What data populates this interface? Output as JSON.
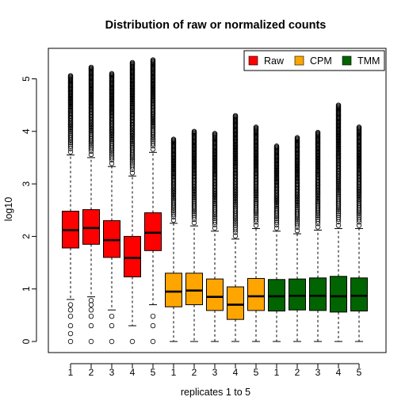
{
  "chart_data": {
    "type": "boxplot",
    "title": "Distribution of raw or normalized counts",
    "xlabel": "replicates 1 to 5",
    "ylabel": "log10",
    "categories": [
      "1",
      "2",
      "3",
      "4",
      "5",
      "1",
      "2",
      "3",
      "4",
      "5",
      "1",
      "2",
      "3",
      "4",
      "5"
    ],
    "ylim": [
      0,
      5.5
    ],
    "yticks": [
      0,
      1,
      2,
      3,
      4,
      5
    ],
    "grid": false,
    "legend": {
      "placement": "top-right",
      "entries": [
        {
          "label": "Raw",
          "color": "#ff0000"
        },
        {
          "label": "CPM",
          "color": "#ffa500"
        },
        {
          "label": "TMM",
          "color": "#006400"
        }
      ]
    },
    "series": [
      {
        "name": "Raw",
        "color": "#ff0000",
        "boxes": [
          {
            "whisker_low": 0.8,
            "q1": 1.78,
            "median": 2.12,
            "q3": 2.48,
            "whisker_high": 3.55,
            "max": 5.06,
            "low_outliers": [
              0.0,
              0.15,
              0.3,
              0.48,
              0.6,
              0.7
            ]
          },
          {
            "whisker_low": 0.85,
            "q1": 1.85,
            "median": 2.16,
            "q3": 2.51,
            "whisker_high": 3.5,
            "max": 5.22,
            "low_outliers": [
              0.0,
              0.3,
              0.48,
              0.6,
              0.7,
              0.78
            ]
          },
          {
            "whisker_low": 0.6,
            "q1": 1.6,
            "median": 1.93,
            "q3": 2.3,
            "whisker_high": 3.33,
            "max": 5.1,
            "low_outliers": [
              0.0,
              0.3,
              0.48
            ]
          },
          {
            "whisker_low": 0.3,
            "q1": 1.23,
            "median": 1.59,
            "q3": 2.0,
            "whisker_high": 3.15,
            "max": 5.31,
            "low_outliers": [
              0.0
            ]
          },
          {
            "whisker_low": 0.7,
            "q1": 1.73,
            "median": 2.07,
            "q3": 2.45,
            "whisker_high": 3.6,
            "max": 5.36,
            "low_outliers": [
              0.0,
              0.3,
              0.48
            ]
          }
        ]
      },
      {
        "name": "CPM",
        "color": "#ffa500",
        "boxes": [
          {
            "whisker_low": 0.0,
            "q1": 0.66,
            "median": 0.95,
            "q3": 1.3,
            "whisker_high": 2.25,
            "max": 3.85,
            "low_outliers": []
          },
          {
            "whisker_low": 0.0,
            "q1": 0.7,
            "median": 0.97,
            "q3": 1.3,
            "whisker_high": 2.2,
            "max": 4.0,
            "low_outliers": []
          },
          {
            "whisker_low": 0.0,
            "q1": 0.59,
            "median": 0.85,
            "q3": 1.19,
            "whisker_high": 2.1,
            "max": 3.96,
            "low_outliers": []
          },
          {
            "whisker_low": 0.0,
            "q1": 0.42,
            "median": 0.7,
            "q3": 1.04,
            "whisker_high": 1.95,
            "max": 4.3,
            "low_outliers": []
          },
          {
            "whisker_low": 0.0,
            "q1": 0.59,
            "median": 0.86,
            "q3": 1.2,
            "whisker_high": 2.15,
            "max": 4.08,
            "low_outliers": []
          }
        ]
      },
      {
        "name": "TMM",
        "color": "#006400",
        "boxes": [
          {
            "whisker_low": 0.0,
            "q1": 0.58,
            "median": 0.86,
            "q3": 1.18,
            "whisker_high": 2.1,
            "max": 3.72,
            "low_outliers": []
          },
          {
            "whisker_low": 0.0,
            "q1": 0.6,
            "median": 0.87,
            "q3": 1.19,
            "whisker_high": 2.05,
            "max": 3.88,
            "low_outliers": []
          },
          {
            "whisker_low": 0.0,
            "q1": 0.59,
            "median": 0.87,
            "q3": 1.21,
            "whisker_high": 2.12,
            "max": 3.98,
            "low_outliers": []
          },
          {
            "whisker_low": 0.0,
            "q1": 0.56,
            "median": 0.86,
            "q3": 1.24,
            "whisker_high": 2.15,
            "max": 4.5,
            "low_outliers": []
          },
          {
            "whisker_low": 0.0,
            "q1": 0.58,
            "median": 0.87,
            "q3": 1.21,
            "whisker_high": 2.15,
            "max": 4.08,
            "low_outliers": []
          }
        ]
      }
    ]
  }
}
